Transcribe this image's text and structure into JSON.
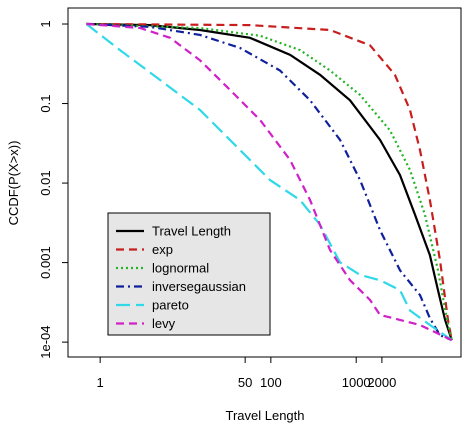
{
  "chart_data": {
    "type": "line",
    "xlabel": "Travel Length",
    "ylabel": "CCDF(P(X>x))",
    "xscale": "log",
    "yscale": "log",
    "xlim": [
      0.42,
      16900
    ],
    "ylim": [
      6.5e-05,
      1.59
    ],
    "xticks": [
      1,
      50,
      100,
      1000,
      2000
    ],
    "yticks": [
      1,
      0.1,
      0.01,
      0.001,
      {
        "value": 0.0001,
        "label": "1e-04"
      }
    ],
    "legend": "bottom-left",
    "series": [
      {
        "name": "Travel Length",
        "color": "#000000",
        "linestyle": "solid",
        "x": [
          0.69,
          3.85,
          14.8,
          57,
          168,
          377,
          846,
          1900,
          3260,
          4890,
          7310,
          9080,
          11000,
          13200
        ],
        "values": [
          1,
          0.97,
          0.84,
          0.67,
          0.41,
          0.23,
          0.11,
          0.035,
          0.0126,
          0.004,
          0.00124,
          0.00045,
          0.00019,
          0.000106
        ]
      },
      {
        "name": "exp",
        "color": "#c81e1e",
        "linestyle": "dashed",
        "x": [
          0.69,
          57,
          493,
          1450,
          2840,
          4270,
          5590,
          7310,
          9580,
          11900,
          13200
        ],
        "values": [
          1,
          0.97,
          0.84,
          0.54,
          0.23,
          0.083,
          0.026,
          0.0061,
          0.00107,
          0.00019,
          0.000106
        ]
      },
      {
        "name": "lognormal",
        "color": "#22b422",
        "linestyle": "dotted",
        "x": [
          0.69,
          14.8,
          75,
          220,
          493,
          1110,
          2490,
          4270,
          6390,
          9080,
          11600,
          13200
        ],
        "values": [
          1,
          0.89,
          0.71,
          0.47,
          0.26,
          0.128,
          0.046,
          0.0146,
          0.004,
          0.0008,
          0.00019,
          0.000106
        ]
      },
      {
        "name": "inversegaussian",
        "color": "#10209a",
        "linestyle": "dashdot",
        "x": [
          0.69,
          3.85,
          14.8,
          43.6,
          128,
          288,
          646,
          1110,
          1900,
          3260,
          5590,
          7310,
          9580,
          13200
        ],
        "values": [
          1,
          0.92,
          0.73,
          0.5,
          0.26,
          0.11,
          0.035,
          0.0109,
          0.00256,
          0.0008,
          0.00039,
          0.0002,
          0.000122,
          0.000106
        ]
      },
      {
        "name": "pareto",
        "color": "#30d8e8",
        "linestyle": "longdash",
        "x": [
          0.69,
          1.71,
          5.04,
          14.8,
          43.6,
          98,
          220,
          377,
          646,
          1110,
          1900,
          3260,
          4270,
          7310,
          13200
        ],
        "values": [
          1,
          0.47,
          0.198,
          0.083,
          0.026,
          0.0109,
          0.0061,
          0.003,
          0.00101,
          0.0007,
          0.0006,
          0.00045,
          0.00025,
          0.000164,
          0.000106
        ]
      },
      {
        "name": "levy",
        "color": "#d020c8",
        "linestyle": "dashed",
        "x": [
          0.69,
          2.94,
          6.6,
          14.8,
          33.3,
          75,
          168,
          288,
          493,
          846,
          1450,
          1900,
          5590,
          13200
        ],
        "values": [
          1,
          0.89,
          0.67,
          0.35,
          0.148,
          0.062,
          0.0195,
          0.0061,
          0.00144,
          0.0006,
          0.00034,
          0.00022,
          0.000164,
          0.000106
        ]
      }
    ]
  }
}
